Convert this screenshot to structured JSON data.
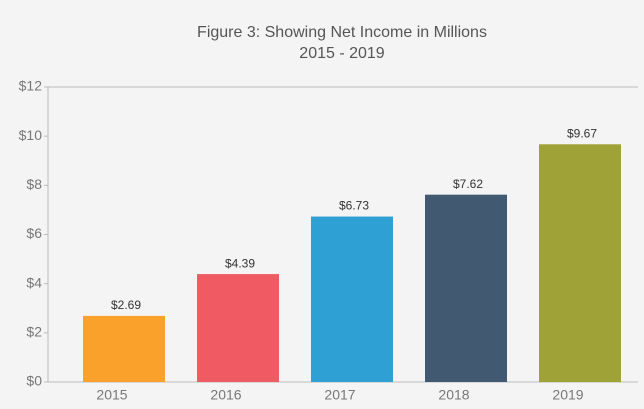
{
  "chart_data": {
    "type": "bar",
    "title": "Figure 3: Showing Net Income in Millions",
    "subtitle": "2015 - 2019",
    "categories": [
      "2015",
      "2016",
      "2017",
      "2018",
      "2019"
    ],
    "values": [
      2.69,
      4.39,
      6.73,
      7.62,
      9.67
    ],
    "value_labels": [
      "$2.69",
      "$4.39",
      "$6.73",
      "$7.62",
      "$9.67"
    ],
    "colors": [
      "#f9a12b",
      "#ef5a63",
      "#2ea0d3",
      "#415a72",
      "#9fa236"
    ],
    "ylim": [
      0,
      12
    ],
    "yticks": [
      {
        "value": 0,
        "label": "$0"
      },
      {
        "value": 2,
        "label": "$2"
      },
      {
        "value": 4,
        "label": "$4"
      },
      {
        "value": 6,
        "label": "$6"
      },
      {
        "value": 8,
        "label": "$8"
      },
      {
        "value": 10,
        "label": "$10"
      },
      {
        "value": 12,
        "label": "$12"
      }
    ],
    "grid": false
  }
}
